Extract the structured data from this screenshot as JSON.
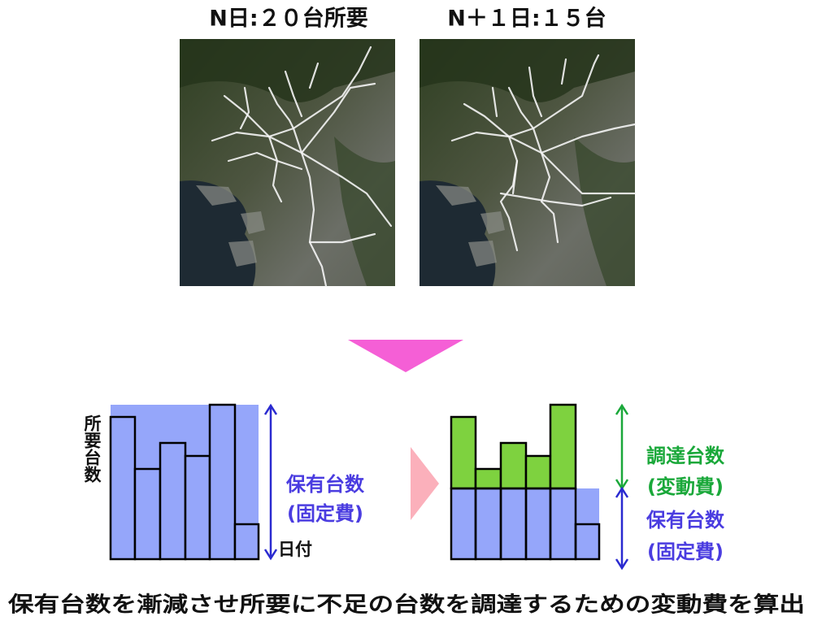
{
  "header": {
    "left_title": "N日:２０台所要",
    "right_title": "N＋１日:１５台"
  },
  "left_chart": {
    "y_label": "所要台数",
    "x_label": "日付",
    "owned_label": "保有台数",
    "owned_cost": "(固定費)"
  },
  "right_chart": {
    "procured_label": "調達台数",
    "procured_cost": "(変動費)",
    "owned_label": "保有台数",
    "owned_cost": "(固定費)"
  },
  "caption": "保有台数を漸減させ所要に不足の台数を調達するための変動費を算出"
}
